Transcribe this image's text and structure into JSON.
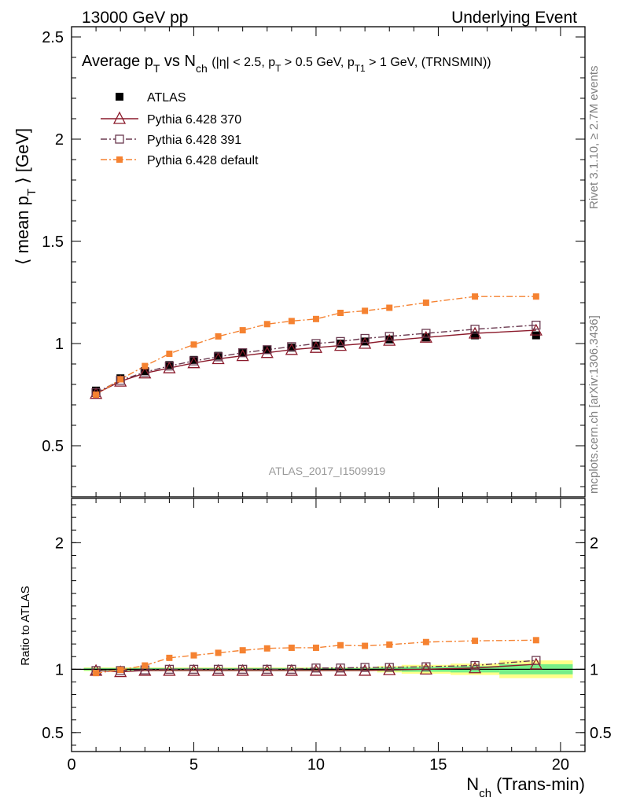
{
  "header": {
    "left": "13000 GeV pp",
    "right": "Underlying Event"
  },
  "side": {
    "rivet": "Rivet 3.1.10, ≥ 2.7M events",
    "mcplots": "mcplots.cern.ch [arXiv:1306.3436]"
  },
  "analysis_id": "ATLAS_2017_I1509919",
  "colors": {
    "atlas": "#000000",
    "p370": "#8b1a2b",
    "p391": "#6b3a50",
    "pdefault": "#f58231",
    "band_green": "#77ee88",
    "band_yellow": "#ffff88"
  },
  "chart_data": [
    {
      "type": "line",
      "title": "Average p_T vs N_ch (|η| < 2.5, p_T > 0.5 GeV, p_T1 > 1 GeV, (TRNSMIN))",
      "ylabel": "⟨ mean p_T ⟩ [GeV]",
      "xlim": [
        0,
        21
      ],
      "ylim": [
        0.25,
        2.55
      ],
      "yticks": [
        "0.5",
        "1",
        "1.5",
        "2",
        "2.5"
      ],
      "x": [
        1,
        2,
        3,
        4,
        5,
        6,
        7,
        8,
        9,
        10,
        11,
        12,
        13,
        14.5,
        16.5,
        19
      ],
      "series": [
        {
          "name": "ATLAS",
          "values": [
            0.77,
            0.83,
            0.865,
            0.895,
            0.92,
            0.94,
            0.955,
            0.97,
            0.98,
            0.99,
            1.0,
            1.01,
            1.02,
            1.03,
            1.04,
            1.04
          ]
        },
        {
          "name": "Pythia 6.428 370",
          "values": [
            0.755,
            0.815,
            0.855,
            0.88,
            0.905,
            0.925,
            0.94,
            0.955,
            0.97,
            0.98,
            0.99,
            1.0,
            1.015,
            1.03,
            1.05,
            1.065
          ]
        },
        {
          "name": "Pythia 6.428 391",
          "values": [
            0.76,
            0.82,
            0.86,
            0.89,
            0.915,
            0.935,
            0.955,
            0.97,
            0.985,
            1.0,
            1.01,
            1.025,
            1.035,
            1.05,
            1.07,
            1.09
          ]
        },
        {
          "name": "Pythia 6.428 default",
          "values": [
            0.75,
            0.825,
            0.89,
            0.95,
            0.995,
            1.035,
            1.065,
            1.095,
            1.11,
            1.12,
            1.15,
            1.16,
            1.175,
            1.2,
            1.23,
            1.23
          ]
        }
      ]
    },
    {
      "type": "line",
      "ylabel": "Ratio to ATLAS",
      "xlabel": "N_ch (Trans-min)",
      "xlim": [
        0,
        21
      ],
      "ylim": [
        0.35,
        2.35
      ],
      "xticks": [
        "0",
        "5",
        "10",
        "15",
        "20"
      ],
      "yticks": [
        "0.5",
        "1",
        "2"
      ],
      "x": [
        1,
        2,
        3,
        4,
        5,
        6,
        7,
        8,
        9,
        10,
        11,
        12,
        13,
        14.5,
        16.5,
        19
      ],
      "series": [
        {
          "name": "Pythia 6.428 370",
          "values": [
            0.99,
            0.98,
            0.99,
            0.99,
            0.99,
            0.99,
            0.99,
            0.99,
            0.99,
            0.99,
            0.99,
            0.99,
            0.995,
            1.0,
            1.01,
            1.04
          ]
        },
        {
          "name": "Pythia 6.428 391",
          "values": [
            0.99,
            0.99,
            0.995,
            1.0,
            1.0,
            1.0,
            1.0,
            1.0,
            1.0,
            1.01,
            1.01,
            1.015,
            1.015,
            1.02,
            1.03,
            1.07
          ]
        },
        {
          "name": "Pythia 6.428 default",
          "values": [
            0.97,
            0.995,
            1.03,
            1.09,
            1.11,
            1.13,
            1.15,
            1.165,
            1.17,
            1.17,
            1.19,
            1.185,
            1.195,
            1.215,
            1.225,
            1.23
          ]
        }
      ],
      "bands": [
        {
          "xmin": 0.5,
          "xmax": 12.5,
          "green": 0.01,
          "yellow": 0.015
        },
        {
          "xmin": 12.5,
          "xmax": 13.5,
          "green": 0.015,
          "yellow": 0.025
        },
        {
          "xmin": 13.5,
          "xmax": 15.5,
          "green": 0.02,
          "yellow": 0.035
        },
        {
          "xmin": 15.5,
          "xmax": 17.5,
          "green": 0.025,
          "yellow": 0.045
        },
        {
          "xmin": 17.5,
          "xmax": 20.5,
          "green": 0.04,
          "yellow": 0.07
        }
      ]
    }
  ]
}
